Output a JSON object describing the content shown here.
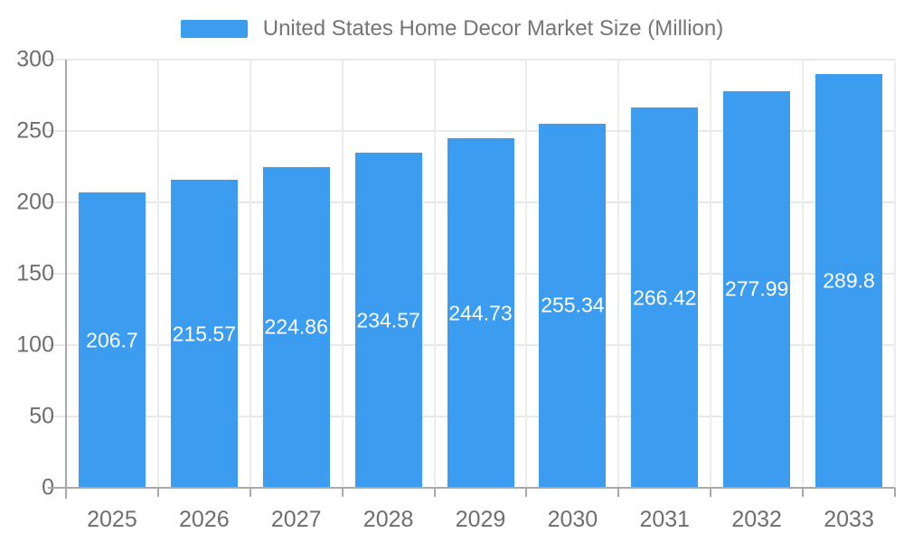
{
  "legend": {
    "label": "United States Home Decor Market Size (Million)"
  },
  "chart_data": {
    "type": "bar",
    "title": "United States Home Decor Market Size (Million)",
    "series_name": "United States Home Decor Market Size (Million)",
    "categories": [
      "2025",
      "2026",
      "2027",
      "2028",
      "2029",
      "2030",
      "2031",
      "2032",
      "2033"
    ],
    "values": [
      206.7,
      215.57,
      224.86,
      234.57,
      244.73,
      255.34,
      266.42,
      277.99,
      289.8
    ],
    "xlabel": "",
    "ylabel": "",
    "ylim": [
      0,
      300
    ],
    "y_ticks": [
      0,
      50,
      100,
      150,
      200,
      250,
      300
    ],
    "grid": true,
    "legend_position": "top-center",
    "value_label_position": "inside-center"
  },
  "colors": {
    "bar": "#3b9cf0",
    "bar_label": "#ffffff",
    "grid_line_horizontal": "#e8e8e8",
    "grid_line_vertical": "#ececec",
    "axis_line": "#a9a9a9",
    "tick_label": "#6e6e6e",
    "legend_text": "#757575",
    "background": "#ffffff"
  }
}
